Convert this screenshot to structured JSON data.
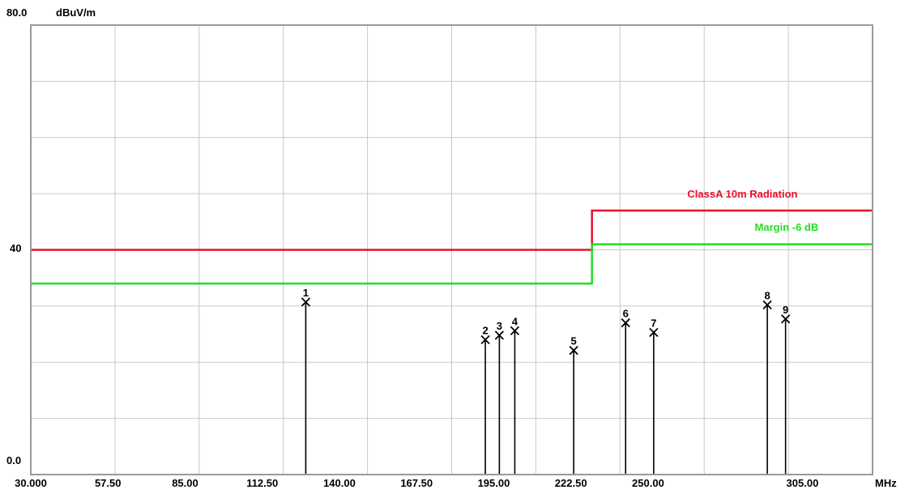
{
  "chart_data": {
    "type": "line",
    "ylabel": "dBuV/m",
    "xunit": "MHz",
    "xlim": [
      30,
      330
    ],
    "ylim": [
      0,
      80
    ],
    "y_top_label": "80.0",
    "y_mid_label": "40",
    "y_bottom_label": "0.0",
    "x_tick_values": [
      30,
      57.5,
      85,
      112.5,
      140,
      167.5,
      195,
      222.5,
      250,
      305
    ],
    "x_tick_labels": [
      "30.000",
      "57.50",
      "85.00",
      "112.50",
      "140.00",
      "167.50",
      "195.00",
      "222.50",
      "250.00",
      "305.00"
    ],
    "x_grid_count": 10,
    "y_grid_count": 8,
    "grid": true,
    "limit_lines": [
      {
        "name": "ClassA 10m Radiation",
        "color": "#e8102a",
        "points": [
          [
            30,
            40
          ],
          [
            230,
            40
          ],
          [
            230,
            47
          ],
          [
            330,
            47
          ]
        ],
        "label_x": 264,
        "label_y": 49.3
      },
      {
        "name": "Margin -6 dB",
        "color": "#1fe024",
        "points": [
          [
            30,
            34
          ],
          [
            230,
            34
          ],
          [
            230,
            41
          ],
          [
            330,
            41
          ]
        ],
        "label_x": 288,
        "label_y": 43.4
      }
    ],
    "markers": [
      {
        "label": "1",
        "x": 128.0,
        "y": 30.7
      },
      {
        "label": "2",
        "x": 192.0,
        "y": 24.0
      },
      {
        "label": "3",
        "x": 197.0,
        "y": 24.8
      },
      {
        "label": "4",
        "x": 202.5,
        "y": 25.6
      },
      {
        "label": "5",
        "x": 223.5,
        "y": 22.1
      },
      {
        "label": "6",
        "x": 242.0,
        "y": 27.0
      },
      {
        "label": "7",
        "x": 252.0,
        "y": 25.3
      },
      {
        "label": "8",
        "x": 292.5,
        "y": 30.2
      },
      {
        "label": "9",
        "x": 299.0,
        "y": 27.7
      }
    ]
  }
}
